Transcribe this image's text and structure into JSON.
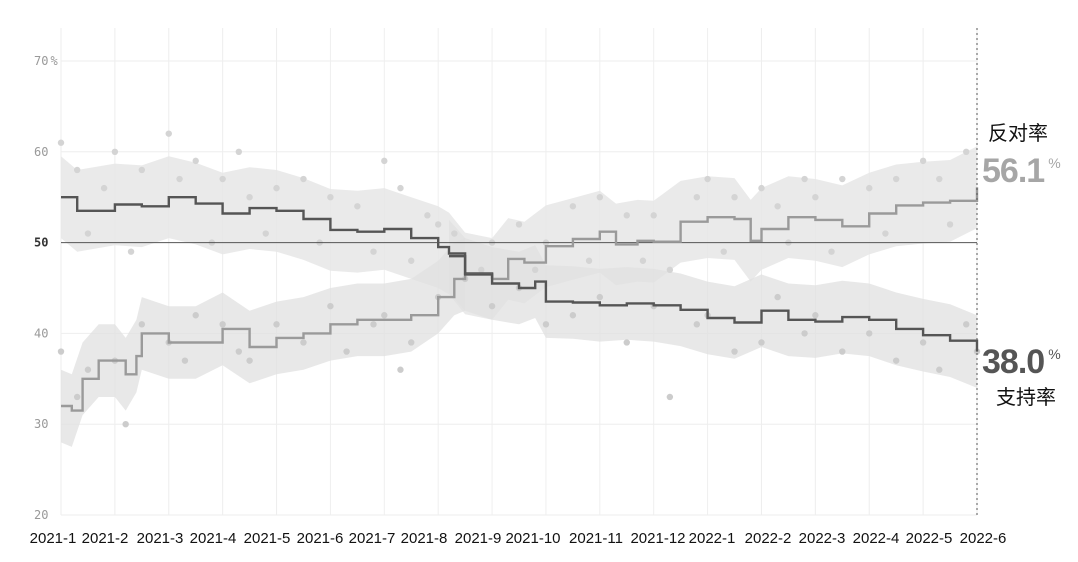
{
  "chart_data": {
    "type": "line",
    "x_ticks": [
      "2021-1",
      "2021-2",
      "2021-3",
      "2021-4",
      "2021-5",
      "2021-6",
      "2021-7",
      "2021-8",
      "2021-9",
      "2021-10",
      "2021-11",
      "2021-12",
      "2022-1",
      "2022-2",
      "2022-3",
      "2022-4",
      "2022-5",
      "2022-6"
    ],
    "y_ticks": [
      "20",
      "30",
      "40",
      "50",
      "60",
      "70"
    ],
    "y_unit": "%",
    "ylim": [
      20,
      70
    ],
    "reference_line": 50,
    "grid": true,
    "series": [
      {
        "name": "反对率",
        "color": "#9a9a9a",
        "band_color": "#e6e6e6",
        "latest_value": "56.1",
        "latest_unit": "%",
        "trend": [
          [
            0,
            55
          ],
          [
            0.3,
            53.5
          ],
          [
            1,
            54.2
          ],
          [
            1.5,
            54
          ],
          [
            2,
            55
          ],
          [
            2.5,
            54.3
          ],
          [
            3,
            53.2
          ],
          [
            3.5,
            53.8
          ],
          [
            4,
            53.5
          ],
          [
            4.5,
            52.6
          ],
          [
            5,
            51.4
          ],
          [
            5.5,
            51.2
          ],
          [
            6,
            51.5
          ],
          [
            6.5,
            50.5
          ],
          [
            7,
            49.5
          ],
          [
            7.2,
            48.8
          ],
          [
            7.5,
            46.6
          ],
          [
            8,
            46
          ],
          [
            8.3,
            48.2
          ],
          [
            8.6,
            47.8
          ],
          [
            9,
            49.6
          ],
          [
            9.5,
            50.4
          ],
          [
            10,
            51.2
          ],
          [
            10.3,
            49.8
          ],
          [
            10.7,
            50.2
          ],
          [
            11,
            50.1
          ],
          [
            11.5,
            52.3
          ],
          [
            12,
            52.8
          ],
          [
            12.5,
            52.6
          ],
          [
            12.8,
            50.2
          ],
          [
            13,
            51.5
          ],
          [
            13.5,
            52.8
          ],
          [
            14,
            52.5
          ],
          [
            14.5,
            51.8
          ],
          [
            15,
            53.2
          ],
          [
            15.5,
            54.1
          ],
          [
            16,
            54.4
          ],
          [
            16.5,
            54.6
          ],
          [
            17,
            56.1
          ]
        ],
        "dots": [
          [
            0,
            61
          ],
          [
            0.3,
            58
          ],
          [
            0.8,
            56
          ],
          [
            1,
            60
          ],
          [
            1.5,
            58
          ],
          [
            2,
            62
          ],
          [
            2.2,
            57
          ],
          [
            2.5,
            59
          ],
          [
            3,
            57
          ],
          [
            3.3,
            60
          ],
          [
            3.5,
            55
          ],
          [
            4,
            56
          ],
          [
            4.5,
            57
          ],
          [
            5,
            55
          ],
          [
            5.5,
            54
          ],
          [
            6,
            59
          ],
          [
            6.3,
            56
          ],
          [
            6.8,
            53
          ],
          [
            7,
            52
          ],
          [
            7.3,
            51
          ],
          [
            7.8,
            47
          ],
          [
            8,
            50
          ],
          [
            8.5,
            52
          ],
          [
            9,
            50
          ],
          [
            9.5,
            54
          ],
          [
            10,
            55
          ],
          [
            10.5,
            53
          ],
          [
            11,
            53
          ],
          [
            11.3,
            47
          ],
          [
            11.8,
            55
          ],
          [
            12,
            57
          ],
          [
            12.5,
            55
          ],
          [
            13,
            56
          ],
          [
            13.3,
            54
          ],
          [
            13.8,
            57
          ],
          [
            14,
            55
          ],
          [
            14.5,
            57
          ],
          [
            15,
            56
          ],
          [
            15.5,
            57
          ],
          [
            16,
            59
          ],
          [
            16.3,
            57
          ],
          [
            16.8,
            60
          ],
          [
            0.5,
            51
          ],
          [
            1.3,
            49
          ],
          [
            2.8,
            50
          ],
          [
            3.8,
            51
          ],
          [
            4.8,
            50
          ],
          [
            5.8,
            49
          ],
          [
            6.5,
            48
          ],
          [
            8.8,
            47
          ],
          [
            9.8,
            48
          ],
          [
            10.8,
            48
          ],
          [
            12.3,
            49
          ],
          [
            13.5,
            50
          ],
          [
            14.3,
            49
          ],
          [
            15.3,
            51
          ],
          [
            16.5,
            52
          ]
        ]
      },
      {
        "name": "支持率",
        "color": "#555555",
        "band_color": "#e0e0e0",
        "latest_value": "38.0",
        "latest_unit": "%",
        "trend": [
          [
            0,
            32
          ],
          [
            0.2,
            31.5
          ],
          [
            0.4,
            35
          ],
          [
            0.7,
            37
          ],
          [
            1,
            37
          ],
          [
            1.2,
            35.5
          ],
          [
            1.4,
            37.5
          ],
          [
            1.5,
            40
          ],
          [
            2,
            39
          ],
          [
            2.5,
            39
          ],
          [
            3,
            40.5
          ],
          [
            3.5,
            38.5
          ],
          [
            4,
            39.5
          ],
          [
            4.5,
            40
          ],
          [
            5,
            41
          ],
          [
            5.5,
            41.5
          ],
          [
            6,
            41.5
          ],
          [
            6.5,
            42
          ],
          [
            7,
            44
          ],
          [
            7.3,
            46
          ],
          [
            7.5,
            46.5
          ],
          [
            8,
            46.5
          ],
          [
            8.5,
            46.4
          ],
          [
            9,
            48
          ],
          [
            9.5,
            48.5
          ],
          [
            10,
            49.5
          ],
          [
            10.5,
            50
          ],
          [
            11,
            50.1
          ],
          [
            11.2,
            50.2
          ],
          [
            11.5,
            50.2
          ],
          [
            12,
            50.1
          ],
          [
            12.2,
            50.2
          ],
          [
            12.5,
            50.2
          ],
          [
            13,
            50.2
          ],
          [
            13.5,
            50.1
          ],
          [
            14,
            50.1
          ],
          [
            14.5,
            50
          ],
          [
            15,
            50.1
          ],
          [
            15.5,
            50.2
          ],
          [
            16,
            50.1
          ],
          [
            16.5,
            50.1
          ],
          [
            17,
            50.1
          ]
        ],
        "trend2": [
          [
            7.2,
            48.5
          ],
          [
            7.5,
            46.5
          ],
          [
            8,
            45.5
          ],
          [
            8.5,
            45
          ],
          [
            8.8,
            45.7
          ],
          [
            9,
            43.5
          ],
          [
            9.5,
            43.4
          ],
          [
            10,
            43.1
          ],
          [
            10.5,
            43.3
          ],
          [
            11,
            43.1
          ],
          [
            11.5,
            42.6
          ],
          [
            12,
            41.7
          ],
          [
            12.5,
            41.2
          ],
          [
            13,
            42.5
          ],
          [
            13.5,
            41.5
          ],
          [
            14,
            41.3
          ],
          [
            14.5,
            41.8
          ],
          [
            15,
            41.5
          ],
          [
            15.5,
            40.5
          ],
          [
            16,
            39.8
          ],
          [
            16.5,
            39.2
          ],
          [
            17,
            38.0
          ]
        ],
        "dots": [
          [
            0,
            38
          ],
          [
            0.3,
            33
          ],
          [
            0.5,
            36
          ],
          [
            1,
            37
          ],
          [
            1.2,
            30
          ],
          [
            1.5,
            41
          ],
          [
            2,
            39
          ],
          [
            2.3,
            37
          ],
          [
            2.5,
            42
          ],
          [
            3,
            41
          ],
          [
            3.3,
            38
          ],
          [
            3.5,
            37
          ],
          [
            4,
            41
          ],
          [
            4.5,
            39
          ],
          [
            5,
            43
          ],
          [
            5.3,
            38
          ],
          [
            5.8,
            41
          ],
          [
            6,
            42
          ],
          [
            6.3,
            36
          ],
          [
            6.5,
            39
          ],
          [
            7,
            44
          ],
          [
            7.5,
            46
          ],
          [
            8,
            43
          ],
          [
            8.5,
            45
          ],
          [
            9,
            41
          ],
          [
            9.5,
            42
          ],
          [
            10,
            44
          ],
          [
            10.5,
            39
          ],
          [
            11,
            43
          ],
          [
            11.3,
            33
          ],
          [
            11.8,
            41
          ],
          [
            12,
            42
          ],
          [
            12.5,
            38
          ],
          [
            13,
            39
          ],
          [
            13.3,
            44
          ],
          [
            13.8,
            40
          ],
          [
            14,
            42
          ],
          [
            14.5,
            38
          ],
          [
            15,
            40
          ],
          [
            15.5,
            37
          ],
          [
            16,
            39
          ],
          [
            16.3,
            36
          ],
          [
            16.8,
            41
          ],
          [
            17,
            38
          ]
        ]
      }
    ],
    "labels": {
      "oppose": "反对率",
      "support": "支持率"
    }
  }
}
